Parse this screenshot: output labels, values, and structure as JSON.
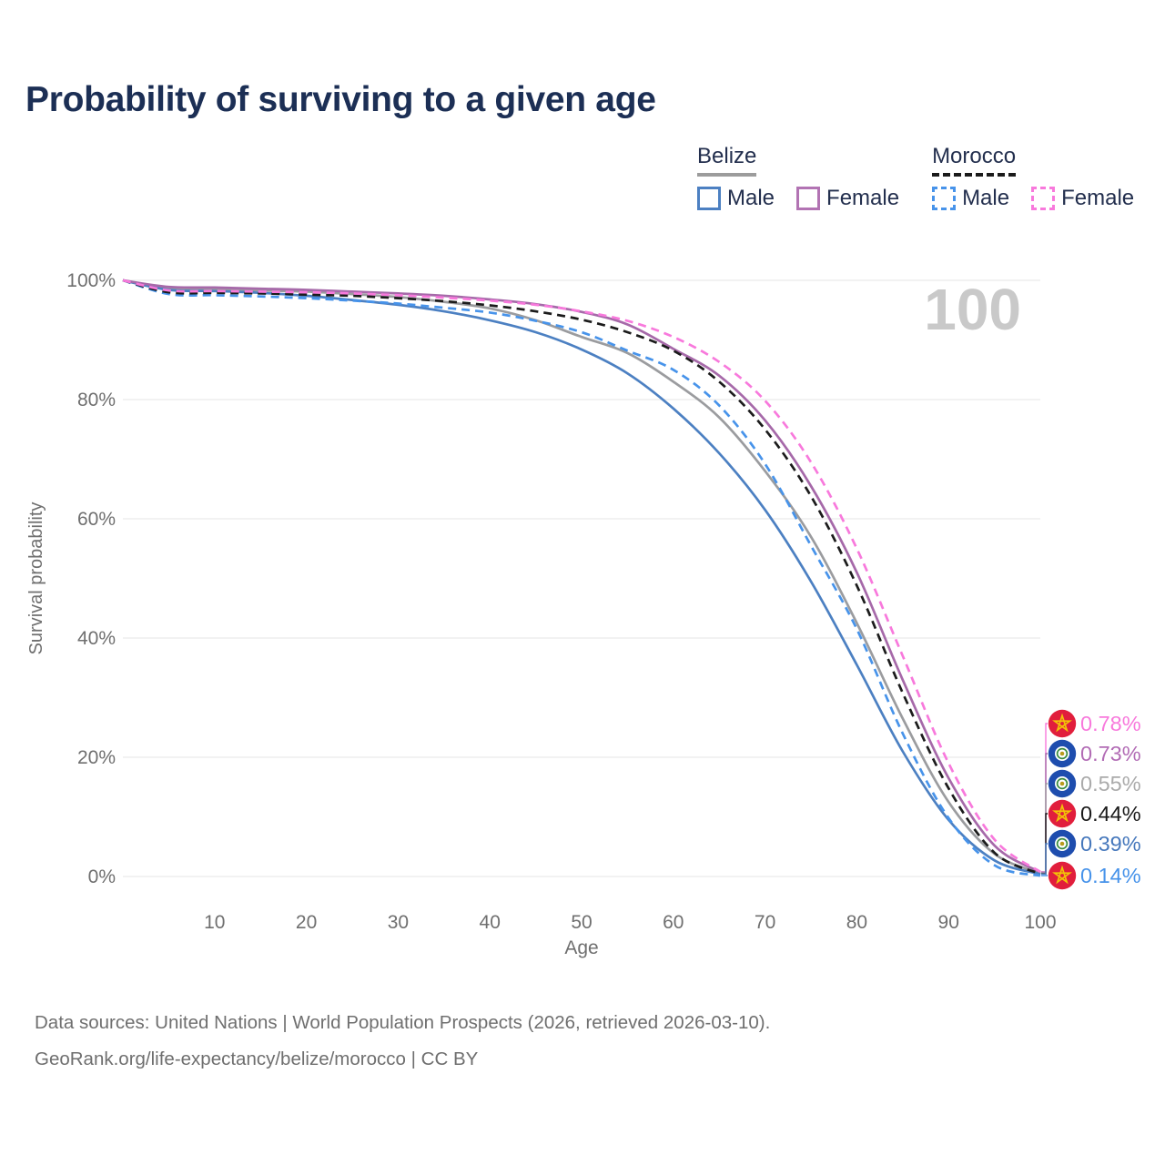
{
  "header": {
    "title": "Probability of surviving to a given age"
  },
  "legend": {
    "groups": [
      {
        "id": "belize",
        "label": "Belize",
        "underline_style": "solid",
        "underline_color": "#9C9C9C",
        "items": [
          {
            "id": "belize-male",
            "label": "Male",
            "color": "#4C80C2",
            "style": "solid"
          },
          {
            "id": "belize-female",
            "label": "Female",
            "color": "#B273B3",
            "style": "solid"
          }
        ]
      },
      {
        "id": "morocco",
        "label": "Morocco",
        "underline_style": "dashed",
        "underline_color": "#1B1B1B",
        "items": [
          {
            "id": "morocco-male",
            "label": "Male",
            "color": "#4793EA",
            "style": "dashed"
          },
          {
            "id": "morocco-female",
            "label": "Female",
            "color": "#F879DC",
            "style": "dashed"
          }
        ]
      }
    ]
  },
  "chart_data": {
    "type": "line",
    "title": "Probability of surviving to a given age",
    "xlabel": "Age",
    "ylabel": "Survival probability",
    "xlim": [
      0,
      100
    ],
    "ylim": [
      0,
      100
    ],
    "grid": "horizontal-only",
    "x_ticks": [
      10,
      20,
      30,
      40,
      50,
      60,
      70,
      80,
      90,
      100
    ],
    "y_ticks": [
      {
        "value": 0,
        "label": "0%"
      },
      {
        "value": 20,
        "label": "20%"
      },
      {
        "value": 40,
        "label": "40%"
      },
      {
        "value": 60,
        "label": "60%"
      },
      {
        "value": 80,
        "label": "80%"
      },
      {
        "value": 100,
        "label": "100%"
      }
    ],
    "hover_age_watermark": "100",
    "x": [
      0,
      5,
      10,
      15,
      20,
      25,
      30,
      35,
      40,
      45,
      50,
      55,
      60,
      65,
      70,
      75,
      80,
      85,
      90,
      95,
      100
    ],
    "series": [
      {
        "id": "morocco-female",
        "entity": "Morocco",
        "sex": "Female",
        "country_flag": "morocco",
        "color": "#F879DC",
        "label_color": "#F879DC",
        "dashed": true,
        "end_label": "0.78%",
        "values": [
          100,
          98.3,
          98.2,
          98.1,
          98.0,
          97.8,
          97.5,
          97.1,
          96.6,
          95.9,
          94.8,
          93.2,
          90.5,
          86.3,
          79.8,
          69.5,
          55.0,
          37.0,
          19.0,
          6.2,
          0.78
        ]
      },
      {
        "id": "belize-female",
        "entity": "Belize",
        "sex": "Female",
        "country_flag": "belize",
        "color": "#A669A9",
        "label_color": "#B26CB5",
        "dashed": false,
        "end_label": "0.73%",
        "values": [
          100,
          98.9,
          98.8,
          98.6,
          98.4,
          98.1,
          97.8,
          97.4,
          96.8,
          96.0,
          94.7,
          92.6,
          88.5,
          84.0,
          76.5,
          65.5,
          51.0,
          33.0,
          16.5,
          5.2,
          0.73
        ]
      },
      {
        "id": "belize-both",
        "entity": "Belize",
        "sex": "Both",
        "country_flag": "belize",
        "color": "#9B9C9F",
        "label_color": "#ABABAB",
        "dashed": false,
        "end_label": "0.55%",
        "values": [
          100,
          98.6,
          98.5,
          98.3,
          98.1,
          97.7,
          97.2,
          96.4,
          95.3,
          93.3,
          90.5,
          87.8,
          83.0,
          77.0,
          68.0,
          57.0,
          42.5,
          26.5,
          12.5,
          3.8,
          0.55
        ]
      },
      {
        "id": "morocco-both",
        "entity": "Morocco",
        "sex": "Both",
        "country_flag": "morocco",
        "color": "#1B1B1B",
        "label_color": "#1B1B1B",
        "dashed": true,
        "end_label": "0.44%",
        "values": [
          100,
          98.0,
          97.9,
          97.8,
          97.6,
          97.4,
          97.0,
          96.5,
          95.8,
          94.8,
          93.4,
          91.3,
          88.2,
          83.0,
          75.0,
          63.8,
          48.8,
          30.8,
          14.8,
          4.0,
          0.44
        ]
      },
      {
        "id": "belize-male",
        "entity": "Belize",
        "sex": "Male",
        "country_flag": "belize",
        "color": "#4C80C2",
        "label_color": "#4678BC",
        "dashed": false,
        "end_label": "0.39%",
        "values": [
          100,
          98.4,
          98.2,
          97.9,
          97.4,
          96.7,
          95.9,
          94.8,
          93.3,
          91.3,
          88.4,
          84.4,
          78.5,
          71.0,
          61.5,
          49.5,
          35.5,
          21.0,
          9.5,
          2.7,
          0.39
        ]
      },
      {
        "id": "morocco-male",
        "entity": "Morocco",
        "sex": "Male",
        "country_flag": "morocco",
        "color": "#4793EA",
        "label_color": "#4793EA",
        "dashed": true,
        "end_label": "0.14%",
        "values": [
          100,
          97.7,
          97.5,
          97.3,
          97.0,
          96.6,
          96.1,
          95.4,
          94.6,
          93.2,
          91.3,
          88.2,
          85.0,
          79.0,
          69.2,
          55.5,
          41.5,
          24.0,
          9.8,
          1.9,
          0.14
        ]
      }
    ],
    "legend_position": "top-right"
  },
  "colors": {
    "title": "#1C2F55",
    "axis_text": "#6F6F6F",
    "gridline": "#EBEBEB",
    "watermark": "#C9C9C9",
    "footer_text": "#6F6F6F"
  },
  "flags": {
    "morocco": {
      "bg": "#E11E3C",
      "star_stroke": "#F2C307"
    },
    "belize": {
      "bg": "#1E4DAE",
      "disc": "#FFFFFF",
      "ring": "#3B8C3E",
      "center": "#B89B1C"
    }
  },
  "footer": {
    "line1": "Data sources: United Nations | World Population Prospects (2026, retrieved 2026-03-10).",
    "line2": "GeoRank.org/life-expectancy/belize/morocco | CC BY"
  }
}
